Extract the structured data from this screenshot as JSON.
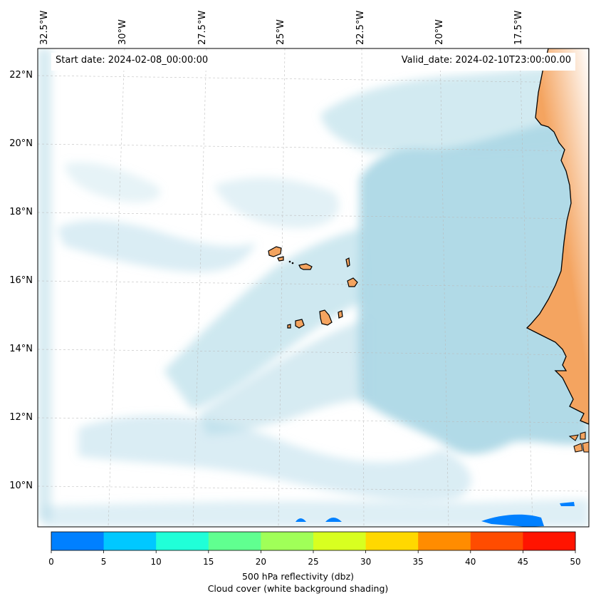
{
  "header": {
    "start_date": "Start date: 2024-02-08_00:00:00",
    "valid_date": "Valid_date: 2024-02-10T23:00:00.00"
  },
  "map": {
    "longitude_labels": [
      "32.5°W",
      "30°W",
      "27.5°W",
      "25°W",
      "22.5°W",
      "20°W",
      "17.5°W"
    ],
    "latitude_labels": [
      "22°N",
      "20°N",
      "18°N",
      "16°N",
      "14°N",
      "12°N",
      "10°N"
    ],
    "land_color": "#f4a460",
    "cloud_color": "#add8e6"
  },
  "colorbar": {
    "ticks": [
      "0",
      "5",
      "10",
      "15",
      "20",
      "25",
      "30",
      "35",
      "40",
      "45",
      "50"
    ],
    "colors": [
      "#0080ff",
      "#00c8ff",
      "#20ffd8",
      "#60ff90",
      "#a0ff58",
      "#d8ff20",
      "#ffd800",
      "#ff8c00",
      "#ff4c00",
      "#ff1400"
    ],
    "label": "500 hPa reflectivity (dbz)",
    "sublabel": "Cloud cover (white background shading)"
  }
}
